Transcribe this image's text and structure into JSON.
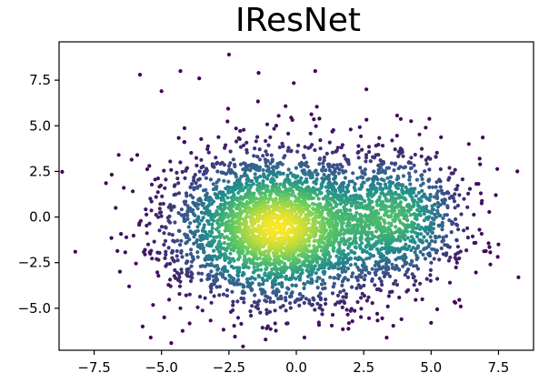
{
  "chart_data": {
    "type": "scatter",
    "title": "IResNet",
    "xlabel": "",
    "ylabel": "",
    "xlim": [
      -8.8,
      8.8
    ],
    "ylim": [
      -7.3,
      9.6
    ],
    "grid": false,
    "legend": "none",
    "colormap": "viridis",
    "colormap_stops": [
      "#440154",
      "#3b528b",
      "#21918c",
      "#5ec962",
      "#fde725"
    ],
    "xticks": [
      -7.5,
      -5.0,
      -2.5,
      0.0,
      2.5,
      5.0,
      7.5
    ],
    "xtick_labels": [
      "−7.5",
      "−5.0",
      "−2.5",
      "0.0",
      "2.5",
      "5.0",
      "7.5"
    ],
    "yticks": [
      -5.0,
      -2.5,
      0.0,
      2.5,
      5.0,
      7.5
    ],
    "ytick_labels": [
      "−5.0",
      "−2.5",
      "0.0",
      "2.5",
      "5.0",
      "7.5"
    ],
    "cluster_summary": {
      "main_center": [
        -0.7,
        -0.6
      ],
      "main_spread": [
        2.0,
        2.1
      ],
      "secondary_center": [
        3.8,
        0.0
      ],
      "secondary_spread": [
        1.3,
        1.8
      ]
    },
    "outlier_points": [
      [
        -8.2,
        -1.9
      ],
      [
        -6.7,
        0.5
      ],
      [
        -6.4,
        1.6
      ],
      [
        -6.2,
        -3.8
      ],
      [
        -5.8,
        7.8
      ],
      [
        -5.7,
        -6.0
      ],
      [
        -5.9,
        3.4
      ],
      [
        -5.0,
        6.9
      ],
      [
        -4.3,
        8.0
      ],
      [
        -3.6,
        7.6
      ],
      [
        -2.5,
        8.9
      ],
      [
        -1.4,
        7.9
      ],
      [
        -1.1,
        -6.1
      ],
      [
        0.7,
        8.0
      ],
      [
        0.3,
        -6.6
      ],
      [
        2.6,
        7.0
      ],
      [
        3.9,
        -5.6
      ],
      [
        4.8,
        4.9
      ],
      [
        5.0,
        -5.8
      ],
      [
        5.9,
        -4.7
      ],
      [
        6.4,
        4.0
      ],
      [
        6.8,
        3.2
      ],
      [
        7.4,
        1.2
      ],
      [
        7.5,
        -1.5
      ],
      [
        8.2,
        2.5
      ],
      [
        7.2,
        -2.6
      ],
      [
        -5.4,
        -6.6
      ],
      [
        -4.9,
        -5.5
      ],
      [
        6.1,
        -4.9
      ],
      [
        3.0,
        -5.3
      ]
    ]
  }
}
